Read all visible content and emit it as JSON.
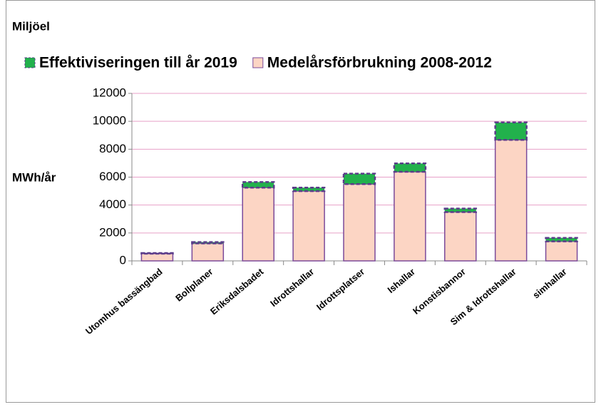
{
  "chart_data": {
    "type": "stacked_bar",
    "title": "Miljöel",
    "ylabel": "MWh/år",
    "categories": [
      "Utomhus bassängbad",
      "Bollplaner",
      "Eriksdalsbadet",
      "Idrottshallar",
      "Idrottsplatser",
      "Ishallar",
      "Konstisbannor",
      "Sim & Idrottshallar",
      "simhallar"
    ],
    "series": [
      {
        "name": "Effektiviseringen till år 2019",
        "color": "#22b14c",
        "values": [
          40,
          100,
          400,
          250,
          750,
          600,
          250,
          1250,
          250
        ]
      },
      {
        "name": "Medelårsförbrukning 2008-2012",
        "color": "#fcd5c4",
        "values": [
          520,
          1250,
          5250,
          5000,
          5500,
          6380,
          3500,
          8670,
          1400
        ]
      }
    ],
    "ylim": [
      0,
      12000
    ],
    "yticks": [
      0,
      2000,
      4000,
      6000,
      8000,
      10000,
      12000
    ],
    "grid": true,
    "legend": "top"
  }
}
